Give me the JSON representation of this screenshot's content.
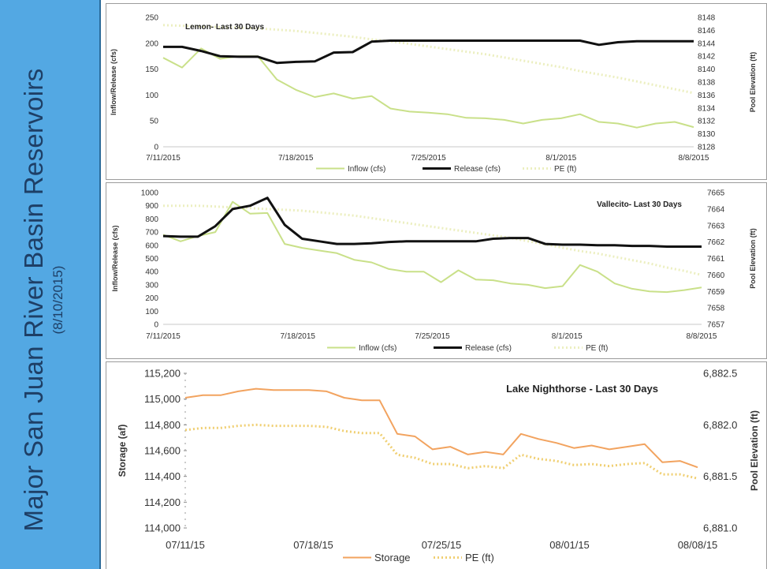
{
  "sidebar": {
    "title": "Major San Juan River Basin Reservoirs",
    "subtitle": "(8/10/2015)",
    "color": "#53a8e3"
  },
  "colors": {
    "inflow": "#c9e089",
    "release": "#111111",
    "pe_green": "#ecefc0",
    "storage": "#f2a35f",
    "pe_orange": "#f0cf72"
  },
  "chart_data": [
    {
      "type": "line",
      "title": "Lemon- Last 30 Days",
      "ylabel": "Inflow/Release (cfs)",
      "y2label": "Pool Elevation (ft)",
      "ylim": [
        0,
        250
      ],
      "yticks": [
        "0",
        "50",
        "100",
        "150",
        "200",
        "250"
      ],
      "y2lim": [
        8128,
        8148
      ],
      "y2ticks": [
        "8128",
        "8130",
        "8132",
        "8134",
        "8136",
        "8138",
        "8140",
        "8142",
        "8144",
        "8146",
        "8148"
      ],
      "xlim": [
        0,
        28
      ],
      "xticks": [
        {
          "x": 0,
          "label": "7/11/2015"
        },
        {
          "x": 7,
          "label": "7/18/2015"
        },
        {
          "x": 14,
          "label": "7/25/2015"
        },
        {
          "x": 21,
          "label": "8/1/2015"
        },
        {
          "x": 28,
          "label": "8/8/2015"
        }
      ],
      "legend": [
        "Inflow (cfs)",
        "Release (cfs)",
        "PE (ft)"
      ],
      "legend_position": "bottom",
      "series": [
        {
          "name": "Inflow (cfs)",
          "axis": "left",
          "style": "solid",
          "width": 2,
          "color_key": "inflow",
          "values": [
            172,
            153,
            190,
            170,
            175,
            175,
            130,
            110,
            96,
            103,
            93,
            98,
            74,
            68,
            66,
            63,
            56,
            55,
            52,
            45,
            52,
            55,
            63,
            48,
            45,
            37,
            45,
            48,
            38
          ]
        },
        {
          "name": "Release (cfs)",
          "axis": "left",
          "style": "solid",
          "width": 3,
          "color_key": "release",
          "values": [
            193,
            193,
            185,
            175,
            174,
            174,
            162,
            164,
            165,
            182,
            183,
            203,
            205,
            205,
            205,
            205,
            205,
            205,
            205,
            205,
            205,
            205,
            205,
            197,
            202,
            204,
            204,
            204,
            204
          ]
        },
        {
          "name": "PE (ft)",
          "axis": "right",
          "style": "dotted",
          "width": 3,
          "color_key": "pe_green",
          "values": [
            8146.8,
            8146.7,
            8146.6,
            8146.5,
            8146.4,
            8146.3,
            8146.1,
            8145.9,
            8145.6,
            8145.3,
            8145.0,
            8144.6,
            8144.3,
            8143.9,
            8143.5,
            8143.1,
            8142.7,
            8142.3,
            8141.8,
            8141.3,
            8140.8,
            8140.3,
            8139.7,
            8139.2,
            8138.7,
            8138.1,
            8137.5,
            8136.9,
            8136.3
          ]
        }
      ]
    },
    {
      "type": "line",
      "title": "Vallecito- Last 30 Days",
      "ylabel": "Inflow/Release (cfs)",
      "y2label": "Pool Elevation (ft)",
      "ylim": [
        0,
        1000
      ],
      "yticks": [
        "0",
        "100",
        "200",
        "300",
        "400",
        "500",
        "600",
        "700",
        "800",
        "900",
        "1000"
      ],
      "y2lim": [
        7657,
        7665
      ],
      "y2ticks": [
        "7657",
        "7658",
        "7659",
        "7660",
        "7661",
        "7662",
        "7663",
        "7664",
        "7665"
      ],
      "xlim": [
        0,
        28
      ],
      "xticks": [
        {
          "x": 0,
          "label": "7/11/2015"
        },
        {
          "x": 7,
          "label": "7/18/2015"
        },
        {
          "x": 14,
          "label": "7/25/2015"
        },
        {
          "x": 21,
          "label": "8/1/2015"
        },
        {
          "x": 28,
          "label": "8/8/2015"
        }
      ],
      "legend": [
        "Inflow (cfs)",
        "Release (cfs)",
        "PE (ft)"
      ],
      "legend_position": "bottom",
      "series": [
        {
          "name": "Inflow (cfs)",
          "axis": "left",
          "style": "solid",
          "width": 2,
          "color_key": "inflow",
          "values": [
            680,
            630,
            670,
            700,
            930,
            840,
            845,
            610,
            580,
            560,
            540,
            490,
            470,
            420,
            400,
            400,
            320,
            410,
            340,
            335,
            310,
            300,
            275,
            290,
            450,
            400,
            310,
            270,
            250,
            245,
            260,
            280
          ]
        },
        {
          "name": "Release (cfs)",
          "axis": "left",
          "style": "solid",
          "width": 3,
          "color_key": "release",
          "values": [
            670,
            665,
            665,
            745,
            875,
            900,
            960,
            755,
            650,
            630,
            610,
            610,
            615,
            625,
            630,
            630,
            630,
            630,
            630,
            650,
            655,
            655,
            610,
            605,
            605,
            600,
            600,
            595,
            595,
            590,
            590,
            590
          ]
        },
        {
          "name": "PE (ft)",
          "axis": "right",
          "style": "dotted",
          "width": 3,
          "color_key": "pe_green",
          "values": [
            7664.2,
            7664.2,
            7664.2,
            7664.15,
            7664.1,
            7664.05,
            7664.0,
            7663.95,
            7663.9,
            7663.8,
            7663.7,
            7663.6,
            7663.45,
            7663.3,
            7663.15,
            7663.0,
            7662.85,
            7662.7,
            7662.55,
            7662.4,
            7662.25,
            7662.05,
            7661.85,
            7661.65,
            7661.45,
            7661.3,
            7661.1,
            7660.9,
            7660.7,
            7660.45,
            7660.25,
            7660.0
          ]
        }
      ]
    },
    {
      "type": "line",
      "title": "Lake Nighthorse - Last 30 Days",
      "ylabel": "Storage (af)",
      "y2label": "Pool Elevation (ft)",
      "ylim": [
        114000,
        115200
      ],
      "yticks": [
        "114,000",
        "114,200",
        "114,400",
        "114,600",
        "114,800",
        "115,000",
        "115,200"
      ],
      "y2lim": [
        6881.0,
        6882.5
      ],
      "y2ticks": [
        "6,881.0",
        "6,881.5",
        "6,882.0",
        "6,882.5"
      ],
      "xlim": [
        0,
        28
      ],
      "xticks": [
        {
          "x": 0,
          "label": "07/11/15"
        },
        {
          "x": 7,
          "label": "07/18/15"
        },
        {
          "x": 14,
          "label": "07/25/15"
        },
        {
          "x": 21,
          "label": "08/01/15"
        },
        {
          "x": 28,
          "label": "08/08/15"
        }
      ],
      "legend": [
        "Storage",
        "PE (ft)"
      ],
      "legend_position": "bottom",
      "series": [
        {
          "name": "Storage",
          "axis": "left",
          "style": "solid",
          "width": 2,
          "color_key": "storage",
          "values": [
            115010,
            115030,
            115030,
            115060,
            115080,
            115070,
            115070,
            115070,
            115060,
            115010,
            114990,
            114990,
            114730,
            114710,
            114610,
            114630,
            114570,
            114590,
            114570,
            114730,
            114690,
            114660,
            114620,
            114640,
            114610,
            114630,
            114650,
            114510,
            114520,
            114470
          ]
        },
        {
          "name": "PE (ft)",
          "axis": "right",
          "style": "dotted",
          "width": 3,
          "color_key": "pe_orange",
          "values": [
            6881.95,
            6881.97,
            6881.97,
            6881.99,
            6882.0,
            6881.99,
            6881.99,
            6881.99,
            6881.98,
            6881.94,
            6881.92,
            6881.92,
            6881.71,
            6881.68,
            6881.62,
            6881.62,
            6881.58,
            6881.6,
            6881.58,
            6881.71,
            6881.67,
            6881.65,
            6881.61,
            6881.62,
            6881.6,
            6881.62,
            6881.63,
            6881.52,
            6881.52,
            6881.48
          ]
        }
      ]
    }
  ]
}
